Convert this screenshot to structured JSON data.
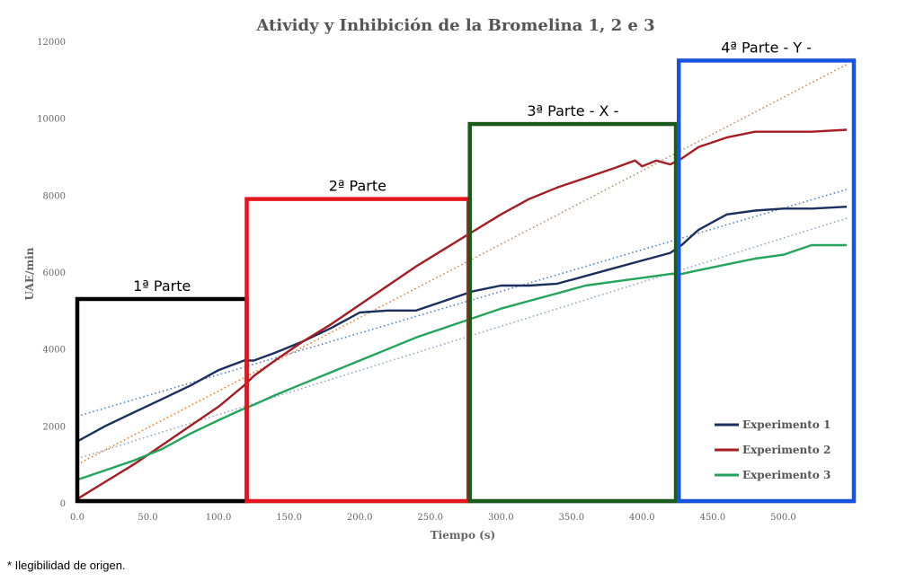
{
  "chart_data": {
    "type": "line",
    "title": "Atividy y Inhibición de la Bromelina 1, 2 e 3",
    "xlabel": "Tiempo (s)",
    "ylabel": "UAE/min",
    "xlim": [
      0,
      550
    ],
    "ylim": [
      0,
      12000
    ],
    "x_ticks": [
      "0.0",
      "50.0",
      "100.0",
      "150.0",
      "200.0",
      "250.0",
      "300.0",
      "350.0",
      "400.0",
      "450.0",
      "500.0"
    ],
    "y_ticks": [
      "0",
      "2000",
      "4000",
      "6000",
      "8000",
      "10000",
      "12000"
    ],
    "grid": false,
    "legend_position": "bottom-right",
    "series": [
      {
        "name": "Experimento 1",
        "color": "#1b2f5e",
        "x": [
          0,
          20,
          40,
          60,
          80,
          100,
          118,
          125,
          140,
          160,
          180,
          200,
          220,
          240,
          260,
          280,
          300,
          320,
          340,
          360,
          380,
          400,
          420,
          428,
          440,
          460,
          480,
          500,
          520,
          545
        ],
        "y": [
          1600,
          2000,
          2350,
          2700,
          3050,
          3450,
          3700,
          3700,
          3900,
          4200,
          4550,
          4950,
          5000,
          5000,
          5250,
          5500,
          5650,
          5650,
          5700,
          5900,
          6100,
          6300,
          6500,
          6700,
          7100,
          7500,
          7600,
          7650,
          7650,
          7700
        ]
      },
      {
        "name": "Experimento 2",
        "color": "#a51d22",
        "x": [
          0,
          20,
          40,
          60,
          80,
          100,
          118,
          125,
          140,
          160,
          180,
          200,
          220,
          240,
          260,
          280,
          300,
          320,
          340,
          360,
          380,
          395,
          400,
          410,
          420,
          428,
          440,
          460,
          480,
          500,
          520,
          545
        ],
        "y": [
          100,
          550,
          1000,
          1500,
          2000,
          2500,
          3050,
          3300,
          3700,
          4200,
          4650,
          5150,
          5650,
          6150,
          6600,
          7050,
          7500,
          7900,
          8200,
          8450,
          8700,
          8900,
          8750,
          8900,
          8800,
          8950,
          9250,
          9500,
          9650,
          9650,
          9650,
          9700
        ]
      },
      {
        "name": "Experimento 3",
        "color": "#22a55a",
        "x": [
          0,
          20,
          40,
          60,
          80,
          100,
          118,
          125,
          140,
          160,
          180,
          200,
          220,
          240,
          260,
          280,
          300,
          320,
          340,
          360,
          380,
          400,
          420,
          428,
          440,
          460,
          480,
          500,
          520,
          545
        ],
        "y": [
          600,
          850,
          1100,
          1400,
          1800,
          2150,
          2450,
          2550,
          2800,
          3100,
          3400,
          3700,
          4000,
          4300,
          4550,
          4800,
          5050,
          5250,
          5450,
          5650,
          5750,
          5850,
          5950,
          5950,
          6050,
          6200,
          6350,
          6450,
          6700,
          6700
        ]
      }
    ],
    "trendlines": [
      {
        "color": "#4f7ec9",
        "x": [
          0,
          545
        ],
        "y": [
          2250,
          8150
        ]
      },
      {
        "color": "#e0803a",
        "x": [
          0,
          545
        ],
        "y": [
          1000,
          11400
        ]
      },
      {
        "color": "#8fa6c8",
        "x": [
          0,
          545
        ],
        "y": [
          1150,
          7400
        ]
      }
    ],
    "regions": [
      {
        "label": "1ª Parte",
        "color": "#000000",
        "x": [
          0,
          120
        ],
        "y": [
          0,
          5300
        ]
      },
      {
        "label": "2ª Parte",
        "color": "#e3161d",
        "x": [
          120,
          277
        ],
        "y": [
          0,
          7900
        ]
      },
      {
        "label": "3ª Parte  - X -",
        "color": "#1a5a1a",
        "x": [
          278,
          424
        ],
        "y": [
          0,
          9850
        ]
      },
      {
        "label": "4ª Parte  - Y -",
        "color": "#1553e0",
        "x": [
          426,
          550
        ],
        "y": [
          0,
          11500
        ]
      }
    ]
  },
  "footnote": "* Ilegibilidad de origen."
}
